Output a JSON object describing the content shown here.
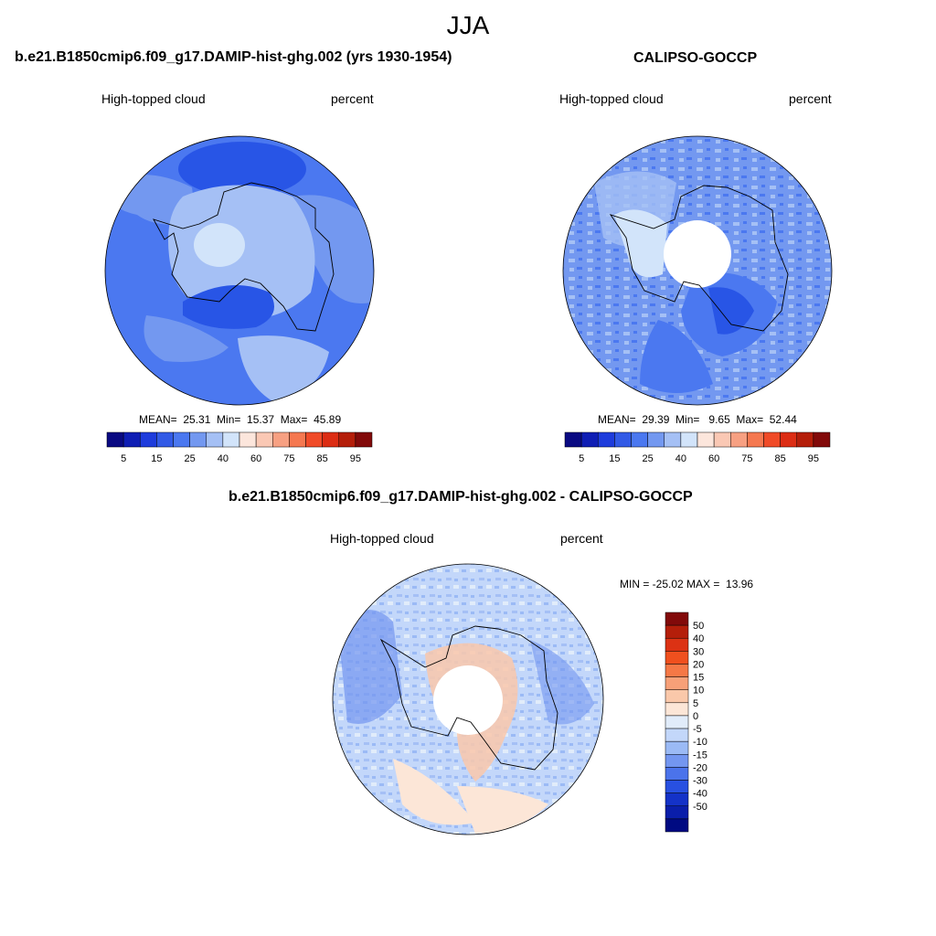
{
  "main_title": "JJA",
  "panels": [
    {
      "title": "b.e21.B1850cmip6.f09_g17.DAMIP-hist-ghg.002 (yrs 1930-1954)",
      "variable": "High-topped cloud",
      "units": "percent",
      "stats": "MEAN=  25.31  Min=  15.37  Max=  45.89"
    },
    {
      "title": "CALIPSO-GOCCP",
      "variable": "High-topped cloud",
      "units": "percent",
      "stats": "MEAN=  29.39  Min=   9.65  Max=  52.44"
    },
    {
      "title": "b.e21.B1850cmip6.f09_g17.DAMIP-hist-ghg.002 - CALIPSO-GOCCP",
      "variable": "High-topped cloud",
      "units": "percent",
      "stats": "MIN = -25.02 MAX =  13.96"
    }
  ],
  "abs_colorbar": {
    "tick_labels": [
      "5",
      "15",
      "25",
      "40",
      "60",
      "75",
      "85",
      "95"
    ],
    "colors": [
      "#0a0a82",
      "#0f1eb4",
      "#1e3cdc",
      "#325ae6",
      "#4b78f0",
      "#7398f0",
      "#a5c0f5",
      "#d2e4fa",
      "#fce6dc",
      "#fac8b4",
      "#f7a082",
      "#f57850",
      "#f04b28",
      "#dc2d14",
      "#b41e0a",
      "#820a0a"
    ]
  },
  "diff_colorbar": {
    "tick_labels": [
      "50",
      "40",
      "30",
      "20",
      "15",
      "10",
      "5",
      "0",
      "-5",
      "-10",
      "-15",
      "-20",
      "-30",
      "-40",
      "-50"
    ],
    "colors": [
      "#820a0a",
      "#b41e0a",
      "#dc3214",
      "#f0501e",
      "#f57846",
      "#f7a078",
      "#fac8aa",
      "#fce6d7",
      "#e1ecfa",
      "#c3d7fa",
      "#9bbaf5",
      "#7396f0",
      "#4b73eb",
      "#2850e1",
      "#1432c8",
      "#0a1eaa",
      "#000a82"
    ]
  },
  "map_colors": {
    "dark_blue": "#2855e6",
    "medium_blue": "#4b78f0",
    "light_blue": "#7398f0",
    "pale_blue": "#a5c0f5",
    "very_pale_blue": "#d2e4fa",
    "pale_orange": "#fce6dc",
    "light_orange": "#fac8aa"
  }
}
